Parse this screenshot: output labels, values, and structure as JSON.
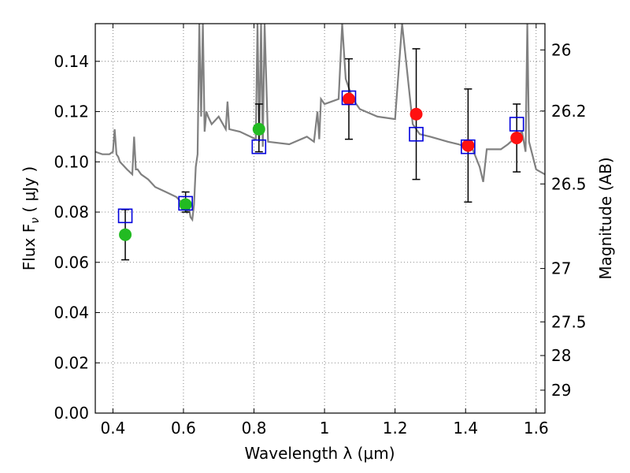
{
  "chart_data": {
    "type": "scatter",
    "title": "",
    "xlabel": "Wavelength  λ (μm)",
    "ylabel": "Flux  F",
    "ylabel_sub": "ν",
    "ylabel_unit": "  ( μJy )",
    "y2label": "Magnitude (AB)",
    "xlim": [
      0.35,
      1.625
    ],
    "ylim": [
      0.0,
      0.155
    ],
    "grid": true,
    "x_ticks": [
      0.4,
      0.6,
      0.8,
      1.0,
      1.2,
      1.4,
      1.6
    ],
    "x_tick_labels": [
      "0.4",
      "0.6",
      "0.8",
      "1",
      "1.2",
      "1.4",
      "1.6"
    ],
    "y_ticks": [
      0.0,
      0.02,
      0.04,
      0.06,
      0.08,
      0.1,
      0.12,
      0.14
    ],
    "y_tick_labels": [
      "0.00",
      "0.02",
      "0.04",
      "0.06",
      "0.08",
      "0.10",
      "0.12",
      "0.14"
    ],
    "y2_ticks": [
      26.0,
      26.2,
      26.5,
      27.0,
      27.5,
      28.0,
      29.0
    ],
    "y2_tick_labels": [
      "26",
      "26.2",
      "26.5",
      "27",
      "27.5",
      "28",
      "29"
    ],
    "series": [
      {
        "marker": "circle",
        "color": "#22bb22",
        "points": [
          {
            "x": 0.435,
            "y": 0.071,
            "err_low": 0.061,
            "err_high": 0.081
          },
          {
            "x": 0.606,
            "y": 0.083,
            "err_low": 0.08,
            "err_high": 0.088
          },
          {
            "x": 0.814,
            "y": 0.113,
            "err_low": 0.104,
            "err_high": 0.123
          }
        ]
      },
      {
        "marker": "circle",
        "color": "#ff1111",
        "points": [
          {
            "x": 1.069,
            "y": 0.125,
            "err_low": 0.109,
            "err_high": 0.141
          },
          {
            "x": 1.26,
            "y": 0.119,
            "err_low": 0.093,
            "err_high": 0.145
          },
          {
            "x": 1.407,
            "y": 0.1065,
            "err_low": 0.084,
            "err_high": 0.129
          },
          {
            "x": 1.545,
            "y": 0.1095,
            "err_low": 0.096,
            "err_high": 0.123
          }
        ]
      },
      {
        "marker": "open-square",
        "color": "#0000dd",
        "points": [
          {
            "x": 0.435,
            "y": 0.0785
          },
          {
            "x": 0.606,
            "y": 0.0835
          },
          {
            "x": 0.814,
            "y": 0.106
          },
          {
            "x": 1.069,
            "y": 0.1255
          },
          {
            "x": 1.26,
            "y": 0.111
          },
          {
            "x": 1.407,
            "y": 0.106
          },
          {
            "x": 1.545,
            "y": 0.115
          }
        ]
      }
    ],
    "model_spectrum": {
      "color": "#808080",
      "x": [
        0.35,
        0.37,
        0.39,
        0.4,
        0.405,
        0.41,
        0.415,
        0.42,
        0.44,
        0.455,
        0.46,
        0.465,
        0.47,
        0.48,
        0.5,
        0.52,
        0.55,
        0.58,
        0.6,
        0.61,
        0.615,
        0.62,
        0.625,
        0.63,
        0.635,
        0.64,
        0.645,
        0.65,
        0.655,
        0.66,
        0.665,
        0.67,
        0.68,
        0.7,
        0.72,
        0.725,
        0.73,
        0.76,
        0.79,
        0.805,
        0.81,
        0.815,
        0.82,
        0.825,
        0.83,
        0.84,
        0.9,
        0.95,
        0.97,
        0.98,
        0.985,
        0.99,
        1.0,
        1.02,
        1.04,
        1.05,
        1.06,
        1.08,
        1.1,
        1.15,
        1.2,
        1.22,
        1.25,
        1.27,
        1.3,
        1.35,
        1.38,
        1.42,
        1.44,
        1.45,
        1.46,
        1.5,
        1.52,
        1.56,
        1.57,
        1.575,
        1.58,
        1.6,
        1.625
      ],
      "y": [
        0.104,
        0.103,
        0.103,
        0.104,
        0.113,
        0.103,
        0.102,
        0.1,
        0.097,
        0.095,
        0.11,
        0.097,
        0.097,
        0.095,
        0.093,
        0.09,
        0.088,
        0.086,
        0.083,
        0.08,
        0.082,
        0.078,
        0.077,
        0.083,
        0.098,
        0.103,
        0.155,
        0.118,
        0.155,
        0.112,
        0.12,
        0.118,
        0.115,
        0.118,
        0.113,
        0.124,
        0.113,
        0.112,
        0.11,
        0.109,
        0.155,
        0.108,
        0.155,
        0.106,
        0.155,
        0.108,
        0.107,
        0.11,
        0.108,
        0.12,
        0.109,
        0.125,
        0.123,
        0.124,
        0.125,
        0.155,
        0.133,
        0.125,
        0.121,
        0.118,
        0.117,
        0.155,
        0.115,
        0.111,
        0.11,
        0.108,
        0.107,
        0.105,
        0.098,
        0.092,
        0.105,
        0.105,
        0.107,
        0.112,
        0.104,
        0.155,
        0.108,
        0.097,
        0.095
      ]
    }
  }
}
